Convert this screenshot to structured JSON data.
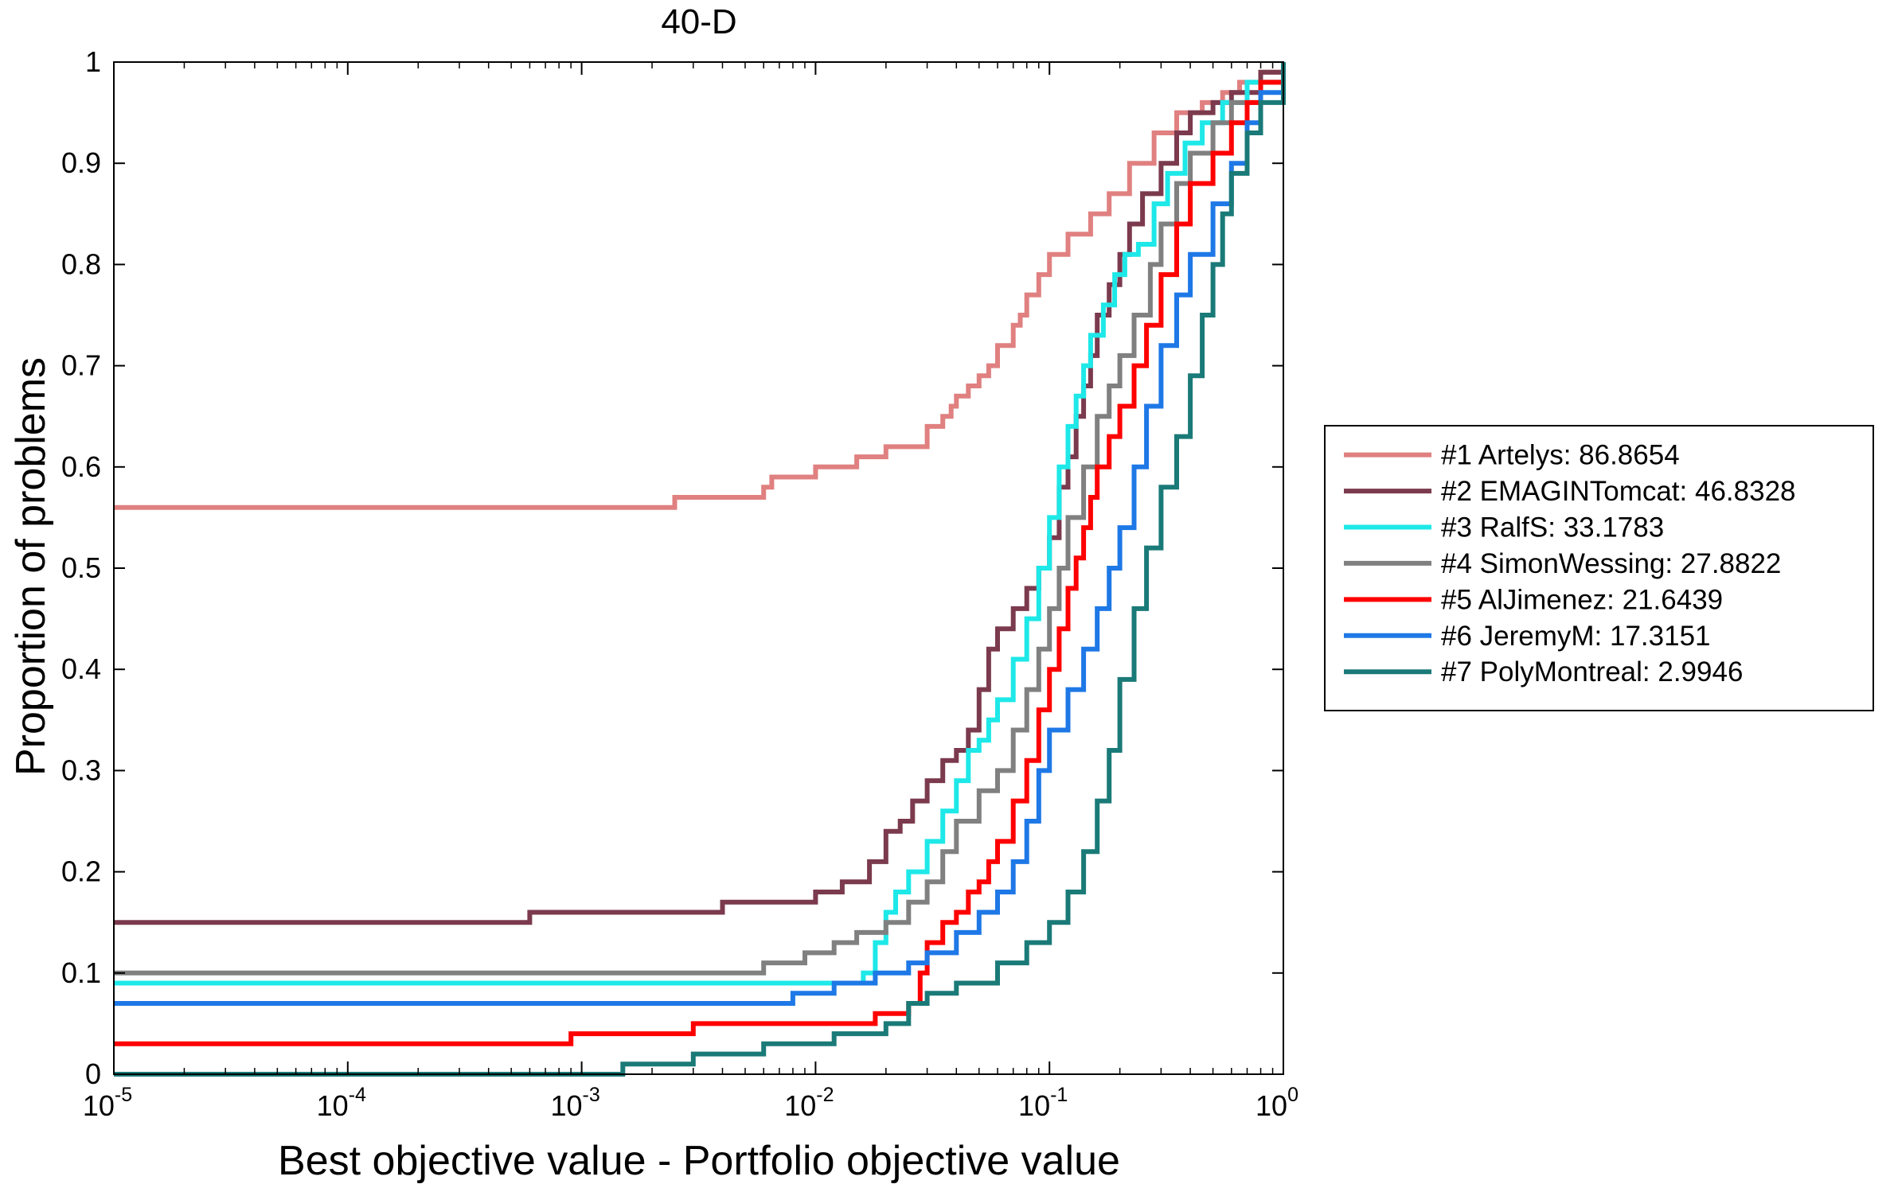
{
  "chart_data": {
    "type": "line",
    "title": "40-D",
    "xlabel": "Best objective value - Portfolio objective value",
    "ylabel": "Proportion of problems",
    "xscale": "log",
    "xlim": [
      1e-05,
      1
    ],
    "ylim": [
      0,
      1
    ],
    "grid": false,
    "legend_position": "outside-right",
    "x_ticks": [
      {
        "base": "10",
        "exp": "-5",
        "value": 1e-05
      },
      {
        "base": "10",
        "exp": "-4",
        "value": 0.0001
      },
      {
        "base": "10",
        "exp": "-3",
        "value": 0.001
      },
      {
        "base": "10",
        "exp": "-2",
        "value": 0.01
      },
      {
        "base": "10",
        "exp": "-1",
        "value": 0.1
      },
      {
        "base": "10",
        "exp": "0",
        "value": 1
      }
    ],
    "y_ticks": [
      "0",
      "0.1",
      "0.2",
      "0.3",
      "0.4",
      "0.5",
      "0.6",
      "0.7",
      "0.8",
      "0.9",
      "1"
    ],
    "series": [
      {
        "name": "#1 Artelys: 86.8654",
        "color": "#e08080",
        "x": [
          1e-05,
          0.0022,
          0.0025,
          0.006,
          0.0065,
          0.01,
          0.015,
          0.02,
          0.022,
          0.03,
          0.035,
          0.038,
          0.04,
          0.045,
          0.05,
          0.055,
          0.06,
          0.07,
          0.075,
          0.08,
          0.09,
          0.1,
          0.12,
          0.15,
          0.18,
          0.22,
          0.28,
          0.35,
          0.45,
          0.55,
          0.65,
          0.8,
          1.0
        ],
        "y": [
          0.56,
          0.56,
          0.57,
          0.58,
          0.59,
          0.6,
          0.61,
          0.62,
          0.62,
          0.64,
          0.65,
          0.66,
          0.67,
          0.68,
          0.69,
          0.7,
          0.72,
          0.74,
          0.75,
          0.77,
          0.79,
          0.81,
          0.83,
          0.85,
          0.87,
          0.9,
          0.93,
          0.95,
          0.96,
          0.97,
          0.98,
          0.99,
          1.0
        ]
      },
      {
        "name": "#2 EMAGINTomcat: 46.8328",
        "color": "#7b3a4e",
        "x": [
          1e-05,
          0.0003,
          0.0006,
          0.0018,
          0.004,
          0.006,
          0.01,
          0.013,
          0.017,
          0.02,
          0.023,
          0.026,
          0.03,
          0.035,
          0.04,
          0.045,
          0.05,
          0.055,
          0.06,
          0.07,
          0.08,
          0.09,
          0.1,
          0.11,
          0.12,
          0.13,
          0.14,
          0.15,
          0.16,
          0.18,
          0.2,
          0.22,
          0.25,
          0.3,
          0.35,
          0.4,
          0.5,
          0.6,
          0.8,
          1.0
        ],
        "y": [
          0.15,
          0.15,
          0.16,
          0.16,
          0.17,
          0.17,
          0.18,
          0.19,
          0.21,
          0.24,
          0.25,
          0.27,
          0.29,
          0.31,
          0.32,
          0.34,
          0.38,
          0.42,
          0.44,
          0.46,
          0.48,
          0.5,
          0.53,
          0.58,
          0.61,
          0.65,
          0.68,
          0.71,
          0.75,
          0.78,
          0.81,
          0.84,
          0.87,
          0.9,
          0.93,
          0.95,
          0.96,
          0.97,
          0.99,
          1.0
        ]
      },
      {
        "name": "#3 RalfS: 33.1783",
        "color": "#1ee8e8",
        "x": [
          1e-05,
          0.014,
          0.016,
          0.018,
          0.02,
          0.022,
          0.025,
          0.03,
          0.035,
          0.04,
          0.045,
          0.05,
          0.055,
          0.06,
          0.07,
          0.08,
          0.09,
          0.1,
          0.11,
          0.12,
          0.13,
          0.14,
          0.15,
          0.17,
          0.19,
          0.21,
          0.24,
          0.28,
          0.32,
          0.38,
          0.45,
          0.55,
          0.7,
          1.0
        ],
        "y": [
          0.09,
          0.09,
          0.1,
          0.13,
          0.16,
          0.18,
          0.2,
          0.23,
          0.26,
          0.29,
          0.32,
          0.33,
          0.35,
          0.37,
          0.41,
          0.45,
          0.5,
          0.55,
          0.6,
          0.64,
          0.67,
          0.7,
          0.73,
          0.76,
          0.79,
          0.81,
          0.82,
          0.86,
          0.89,
          0.92,
          0.94,
          0.96,
          0.98,
          1.0
        ]
      },
      {
        "name": "#4 SimonWessing: 27.8822",
        "color": "#808080",
        "x": [
          1e-05,
          0.004,
          0.006,
          0.009,
          0.012,
          0.015,
          0.02,
          0.025,
          0.03,
          0.035,
          0.04,
          0.05,
          0.06,
          0.07,
          0.08,
          0.09,
          0.1,
          0.11,
          0.12,
          0.14,
          0.16,
          0.18,
          0.2,
          0.23,
          0.27,
          0.3,
          0.35,
          0.4,
          0.5,
          0.6,
          0.8,
          1.0
        ],
        "y": [
          0.1,
          0.1,
          0.11,
          0.12,
          0.13,
          0.14,
          0.15,
          0.17,
          0.19,
          0.22,
          0.25,
          0.28,
          0.3,
          0.34,
          0.38,
          0.42,
          0.46,
          0.5,
          0.55,
          0.6,
          0.65,
          0.68,
          0.71,
          0.75,
          0.8,
          0.84,
          0.88,
          0.91,
          0.94,
          0.96,
          0.98,
          1.0
        ]
      },
      {
        "name": "#5 AlJimenez: 21.6439",
        "color": "#ff0000",
        "x": [
          1e-05,
          0.0003,
          0.0009,
          0.0013,
          0.003,
          0.005,
          0.008,
          0.012,
          0.018,
          0.025,
          0.028,
          0.03,
          0.035,
          0.04,
          0.045,
          0.05,
          0.055,
          0.06,
          0.07,
          0.08,
          0.09,
          0.1,
          0.11,
          0.12,
          0.13,
          0.14,
          0.15,
          0.16,
          0.18,
          0.2,
          0.23,
          0.26,
          0.3,
          0.35,
          0.4,
          0.5,
          0.6,
          0.7,
          0.8,
          1.0
        ],
        "y": [
          0.03,
          0.03,
          0.04,
          0.04,
          0.05,
          0.05,
          0.05,
          0.05,
          0.06,
          0.07,
          0.1,
          0.13,
          0.15,
          0.16,
          0.18,
          0.19,
          0.21,
          0.23,
          0.27,
          0.31,
          0.36,
          0.4,
          0.44,
          0.48,
          0.51,
          0.54,
          0.57,
          0.6,
          0.63,
          0.66,
          0.7,
          0.74,
          0.79,
          0.84,
          0.88,
          0.91,
          0.94,
          0.96,
          0.98,
          1.0
        ]
      },
      {
        "name": "#6 JeremyM: 17.3151",
        "color": "#1e78e6",
        "x": [
          1e-05,
          0.0065,
          0.008,
          0.012,
          0.018,
          0.025,
          0.03,
          0.04,
          0.05,
          0.06,
          0.07,
          0.08,
          0.09,
          0.1,
          0.12,
          0.14,
          0.16,
          0.18,
          0.2,
          0.23,
          0.26,
          0.3,
          0.35,
          0.4,
          0.5,
          0.6,
          0.7,
          0.8,
          1.0
        ],
        "y": [
          0.07,
          0.07,
          0.08,
          0.09,
          0.1,
          0.11,
          0.12,
          0.14,
          0.16,
          0.18,
          0.21,
          0.25,
          0.3,
          0.34,
          0.38,
          0.42,
          0.46,
          0.5,
          0.54,
          0.6,
          0.66,
          0.72,
          0.77,
          0.81,
          0.86,
          0.9,
          0.94,
          0.97,
          1.0
        ]
      },
      {
        "name": "#7 PolyMontreal: 2.9946",
        "color": "#1a7a78",
        "x": [
          1e-05,
          0.0012,
          0.0015,
          0.003,
          0.006,
          0.012,
          0.02,
          0.025,
          0.03,
          0.04,
          0.06,
          0.08,
          0.1,
          0.12,
          0.14,
          0.16,
          0.18,
          0.2,
          0.23,
          0.26,
          0.3,
          0.35,
          0.4,
          0.45,
          0.5,
          0.55,
          0.6,
          0.7,
          0.8,
          1.0
        ],
        "y": [
          0.0,
          0.0,
          0.01,
          0.02,
          0.03,
          0.04,
          0.05,
          0.07,
          0.08,
          0.09,
          0.11,
          0.13,
          0.15,
          0.18,
          0.22,
          0.27,
          0.32,
          0.39,
          0.46,
          0.52,
          0.58,
          0.63,
          0.69,
          0.75,
          0.8,
          0.85,
          0.89,
          0.93,
          0.96,
          1.0
        ]
      }
    ]
  }
}
